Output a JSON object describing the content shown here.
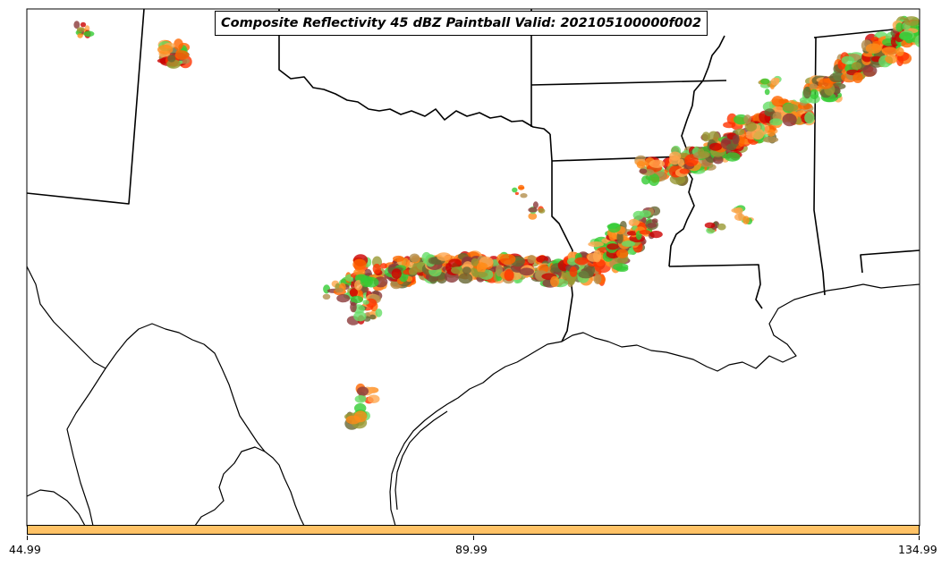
{
  "title": "Composite Reflectivity 45 dBZ Paintball Valid: 202105100000f002",
  "colors": {
    "colorbar_fill": "#ffc266",
    "paintball_palette": [
      "#cc0000",
      "#ff3300",
      "#ff6600",
      "#ff8c1a",
      "#ffa64d",
      "#33cc33",
      "#66dd66",
      "#999933",
      "#b38f4d",
      "#8b3a3a",
      "#666633"
    ]
  },
  "colorbar": {
    "ticks": [
      "44.99",
      "89.99",
      "134.99"
    ]
  },
  "chart_data": {
    "type": "map",
    "title": "Composite Reflectivity 45 dBZ Paintball Valid: 202105100000f002",
    "variable": "composite reflectivity >= 45 dBZ (ensemble paintball)",
    "colorbar_ticks": [
      44.99,
      89.99,
      134.99
    ],
    "region": "southern United States (Texas, Louisiana, Mississippi, Alabama, Oklahoma, Arkansas)"
  }
}
